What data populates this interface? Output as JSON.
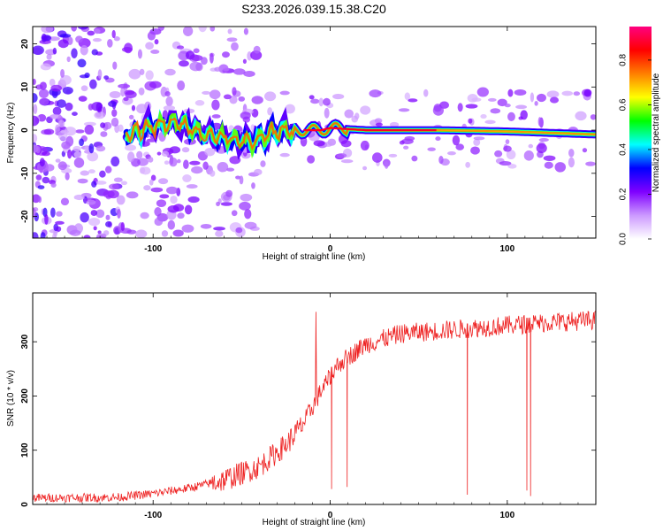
{
  "chart_data": [
    {
      "type": "heatmap",
      "title": "S233.2026.039.15.38.C20",
      "xlabel": "Height of straight line (km)",
      "ylabel": "Frequency (Hz)",
      "xlim": [
        -168,
        150
      ],
      "ylim": [
        -25,
        24
      ],
      "x_ticks": [
        -100,
        0,
        100
      ],
      "y_ticks": [
        20,
        10,
        0,
        -10,
        -20
      ],
      "colorbar": {
        "label": "Normalized spectral amplitude",
        "range": [
          0.0,
          0.95
        ],
        "ticks": [
          0.0,
          0.2,
          0.4,
          0.6,
          0.8
        ],
        "colormap": [
          "#ffffff",
          "#cc99ff",
          "#7f00ff",
          "#0000ff",
          "#00ffff",
          "#00ff00",
          "#ffff00",
          "#ff7f00",
          "#ff0000",
          "#ff0080"
        ]
      },
      "ridge": {
        "description_points": [
          {
            "x": -115,
            "y": -1
          },
          {
            "x": -90,
            "y": 2
          },
          {
            "x": -70,
            "y": -1
          },
          {
            "x": -45,
            "y": -3
          },
          {
            "x": -30,
            "y": 0
          },
          {
            "x": -15,
            "y": 0
          },
          {
            "x": -5,
            "y": 0
          },
          {
            "x": 0,
            "y": 0.5
          },
          {
            "x": 20,
            "y": 0
          },
          {
            "x": 60,
            "y": 0
          },
          {
            "x": 100,
            "y": -0.3
          },
          {
            "x": 150,
            "y": -1
          }
        ],
        "peak_amplitude_x_range": [
          -15,
          60
        ]
      }
    },
    {
      "type": "line",
      "xlabel": "Height of straight line (km)",
      "ylabel": "SNR (10 * v/v)",
      "xlim": [
        -168,
        150
      ],
      "ylim": [
        0,
        390
      ],
      "x_ticks": [
        -100,
        0,
        100
      ],
      "y_ticks": [
        0,
        100,
        200,
        300
      ],
      "series": [
        {
          "name": "SNR",
          "color": "#ee2222",
          "trend": [
            {
              "x": -168,
              "y": 12
            },
            {
              "x": -120,
              "y": 13
            },
            {
              "x": -100,
              "y": 20
            },
            {
              "x": -80,
              "y": 30
            },
            {
              "x": -60,
              "y": 45
            },
            {
              "x": -40,
              "y": 70
            },
            {
              "x": -25,
              "y": 110
            },
            {
              "x": -15,
              "y": 150
            },
            {
              "x": -5,
              "y": 210
            },
            {
              "x": 5,
              "y": 260
            },
            {
              "x": 20,
              "y": 295
            },
            {
              "x": 40,
              "y": 315
            },
            {
              "x": 60,
              "y": 320
            },
            {
              "x": 80,
              "y": 325
            },
            {
              "x": 100,
              "y": 330
            },
            {
              "x": 120,
              "y": 335
            },
            {
              "x": 150,
              "y": 340
            }
          ],
          "dropouts_x_range": [
            0,
            115
          ],
          "notable_spike": {
            "x": -8,
            "y": 355
          }
        }
      ]
    }
  ]
}
